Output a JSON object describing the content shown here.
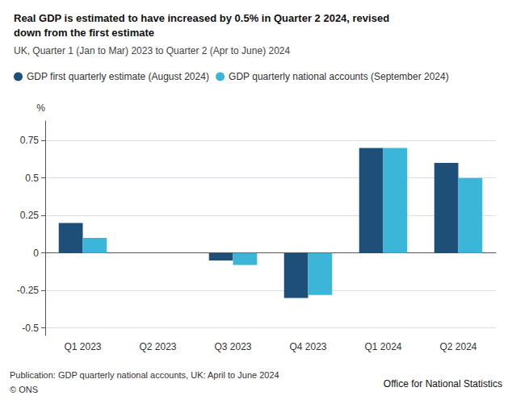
{
  "chart_data": {
    "type": "bar",
    "title": "Real GDP is estimated to have increased by 0.5% in Quarter 2 2024, revised\ndown from the first estimate",
    "subtitle": "UK, Quarter 1 (Jan to Mar) 2023 to Quarter 2 (Apr to June) 2024",
    "y_label": "%",
    "categories": [
      "Q1 2023",
      "Q2 2023",
      "Q3 2023",
      "Q4 2023",
      "Q1 2024",
      "Q2 2024"
    ],
    "series": [
      {
        "name": "GDP first quarterly estimate (August 2024)",
        "color": "#1e4f79",
        "values": [
          0.2,
          0.0,
          -0.05,
          -0.3,
          0.7,
          0.6
        ]
      },
      {
        "name": "GDP quarterly national accounts (September 2024)",
        "color": "#3bb5d8",
        "values": [
          0.1,
          0.0,
          -0.08,
          -0.28,
          0.7,
          0.5
        ]
      }
    ],
    "ylim": [
      -0.55,
      0.88
    ],
    "yticks": [
      -0.5,
      -0.25,
      0,
      0.25,
      0.5,
      0.75
    ],
    "grid": true,
    "legend": "top",
    "annotations": [
      "Publication: GDP quarterly national accounts, UK: April to June 2024",
      "© ONS",
      "Office for National Statistics"
    ]
  }
}
